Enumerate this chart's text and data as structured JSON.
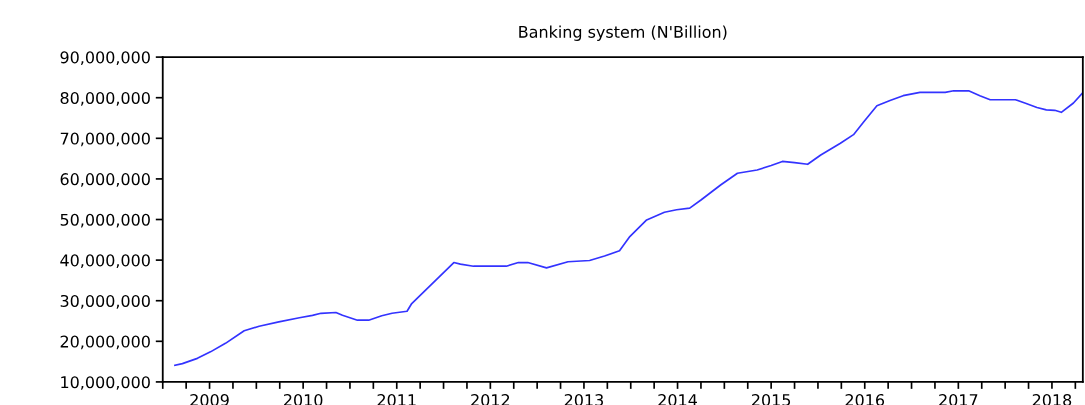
{
  "chart_data": {
    "type": "line",
    "title": "Banking system (N'Billion)",
    "x": [
      2009.13,
      2009.21,
      2009.37,
      2009.51,
      2009.67,
      2009.87,
      2010.03,
      2010.24,
      2010.46,
      2010.6,
      2010.69,
      2010.85,
      2010.92,
      2011.08,
      2011.2,
      2011.34,
      2011.45,
      2011.61,
      2011.66,
      2012.11,
      2012.18,
      2012.32,
      2012.67,
      2012.8,
      2012.9,
      2013.1,
      2013.33,
      2013.56,
      2013.72,
      2013.88,
      2013.99,
      2014.17,
      2014.36,
      2014.49,
      2014.63,
      2014.75,
      2014.96,
      2015.14,
      2015.35,
      2015.5,
      2015.62,
      2015.75,
      2015.89,
      2016.03,
      2016.24,
      2016.38,
      2016.49,
      2016.63,
      2016.77,
      2016.91,
      2017.09,
      2017.36,
      2017.45,
      2017.61,
      2017.73,
      2017.84,
      2018.11,
      2018.21,
      2018.34,
      2018.44,
      2018.53,
      2018.6,
      2018.73,
      2018.82
    ],
    "series": [
      {
        "color": "#3333ff",
        "values": [
          14100000,
          14500000,
          15800000,
          17400000,
          19500000,
          22600000,
          23700000,
          24800000,
          25800000,
          26400000,
          26900000,
          27100000,
          26400000,
          25200000,
          25200000,
          26300000,
          26900000,
          27400000,
          29300000,
          39400000,
          39000000,
          38500000,
          38500000,
          39400000,
          39400000,
          38100000,
          39600000,
          39900000,
          41000000,
          42300000,
          45800000,
          49900000,
          51800000,
          52400000,
          52800000,
          54800000,
          58500000,
          61400000,
          62200000,
          63300000,
          64300000,
          64000000,
          63600000,
          65900000,
          68800000,
          70900000,
          74100000,
          78000000,
          79300000,
          80500000,
          81300000,
          81300000,
          81700000,
          81700000,
          80500000,
          79500000,
          79500000,
          78700000,
          77600000,
          77000000,
          76900000,
          76400000,
          78700000,
          81000000
        ]
      }
    ],
    "xlim": [
      2009,
      2018.83
    ],
    "xticks": [
      {
        "value": 2009,
        "label": null
      },
      {
        "value": 2009.25,
        "label": null
      },
      {
        "value": 2009.5,
        "label": "2009"
      },
      {
        "value": 2009.75,
        "label": null
      },
      {
        "value": 2010,
        "label": null
      },
      {
        "value": 2010.25,
        "label": null
      },
      {
        "value": 2010.5,
        "label": "2010"
      },
      {
        "value": 2010.75,
        "label": null
      },
      {
        "value": 2011,
        "label": null
      },
      {
        "value": 2011.25,
        "label": null
      },
      {
        "value": 2011.5,
        "label": "2011"
      },
      {
        "value": 2011.75,
        "label": null
      },
      {
        "value": 2012,
        "label": null
      },
      {
        "value": 2012.25,
        "label": null
      },
      {
        "value": 2012.5,
        "label": "2012"
      },
      {
        "value": 2012.75,
        "label": null
      },
      {
        "value": 2013,
        "label": null
      },
      {
        "value": 2013.25,
        "label": null
      },
      {
        "value": 2013.5,
        "label": "2013"
      },
      {
        "value": 2013.75,
        "label": null
      },
      {
        "value": 2014,
        "label": null
      },
      {
        "value": 2014.25,
        "label": null
      },
      {
        "value": 2014.5,
        "label": "2014"
      },
      {
        "value": 2014.75,
        "label": null
      },
      {
        "value": 2015,
        "label": null
      },
      {
        "value": 2015.25,
        "label": null
      },
      {
        "value": 2015.5,
        "label": "2015"
      },
      {
        "value": 2015.75,
        "label": null
      },
      {
        "value": 2016,
        "label": null
      },
      {
        "value": 2016.25,
        "label": null
      },
      {
        "value": 2016.5,
        "label": "2016"
      },
      {
        "value": 2016.75,
        "label": null
      },
      {
        "value": 2017,
        "label": null
      },
      {
        "value": 2017.25,
        "label": null
      },
      {
        "value": 2017.5,
        "label": "2017"
      },
      {
        "value": 2017.75,
        "label": null
      },
      {
        "value": 2018,
        "label": null
      },
      {
        "value": 2018.25,
        "label": null
      },
      {
        "value": 2018.5,
        "label": "2018"
      },
      {
        "value": 2018.75,
        "label": null
      }
    ],
    "ylim": [
      10000000,
      90000000
    ],
    "yticks": [
      {
        "value": 10000000,
        "label": "10,000,000"
      },
      {
        "value": 20000000,
        "label": "20,000,000"
      },
      {
        "value": 30000000,
        "label": "30,000,000"
      },
      {
        "value": 40000000,
        "label": "40,000,000"
      },
      {
        "value": 50000000,
        "label": "50,000,000"
      },
      {
        "value": 60000000,
        "label": "60,000,000"
      },
      {
        "value": 70000000,
        "label": "70,000,000"
      },
      {
        "value": 80000000,
        "label": "80,000,000"
      },
      {
        "value": 90000000,
        "label": "90,000,000"
      }
    ],
    "grid": false,
    "legend": false,
    "marker": "none",
    "line_style": "solid"
  }
}
